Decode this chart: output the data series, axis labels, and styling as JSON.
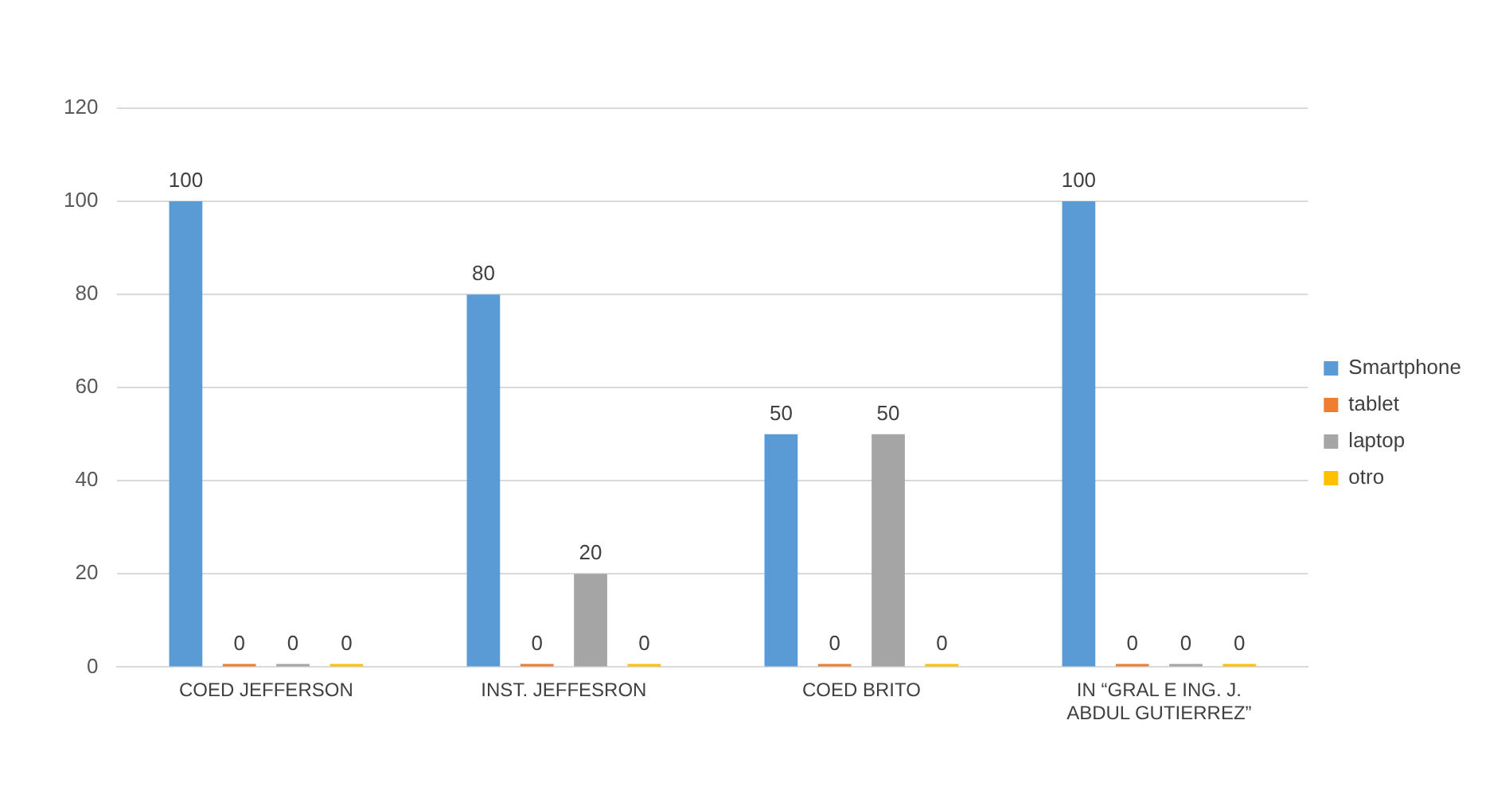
{
  "chart_data": {
    "type": "bar",
    "categories": [
      "COED JEFFERSON",
      "INST. JEFFESRON",
      "COED BRITO",
      "IN “GRAL E ING. J. ABDUL GUTIERREZ”"
    ],
    "series": [
      {
        "name": "Smartphone",
        "color": "#5b9bd5",
        "values": [
          100,
          80,
          50,
          100
        ]
      },
      {
        "name": "tablet",
        "color": "#ed7d31",
        "values": [
          0,
          0,
          0,
          0
        ]
      },
      {
        "name": "laptop",
        "color": "#a5a5a5",
        "values": [
          0,
          20,
          50,
          0
        ]
      },
      {
        "name": "otro",
        "color": "#ffc000",
        "values": [
          0,
          0,
          0,
          0
        ]
      }
    ],
    "ylim": [
      0,
      120
    ],
    "yticks": [
      0,
      20,
      40,
      60,
      80,
      100,
      120
    ],
    "grid": "y",
    "legend": "right",
    "data_labels": true
  }
}
